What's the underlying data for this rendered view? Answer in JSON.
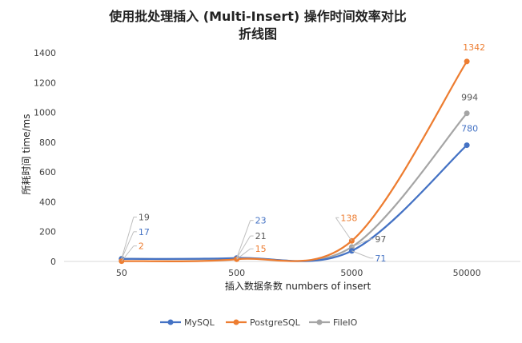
{
  "chart_data": {
    "type": "line",
    "title_line1": "使用批处理插入 (Multi-Insert) 操作时间效率对比",
    "title_line2": "折线图",
    "xlabel": "插入数据条数 numbers of insert",
    "ylabel": "所耗时间 time/ms",
    "categories": [
      "50",
      "500",
      "5000",
      "50000"
    ],
    "ylim": [
      0,
      1400
    ],
    "yticks": [
      0,
      200,
      400,
      600,
      800,
      1000,
      1200,
      1400
    ],
    "grid": false,
    "smooth": true,
    "legend_position": "bottom",
    "series": [
      {
        "name": "MySQL",
        "color": "#4472C4",
        "values": [
          17,
          23,
          71,
          780
        ]
      },
      {
        "name": "PostgreSQL",
        "color": "#ED7D31",
        "values": [
          2,
          15,
          138,
          1342
        ]
      },
      {
        "name": "FileIO",
        "color": "#A5A5A5",
        "values": [
          19,
          21,
          97,
          994
        ]
      }
    ]
  }
}
